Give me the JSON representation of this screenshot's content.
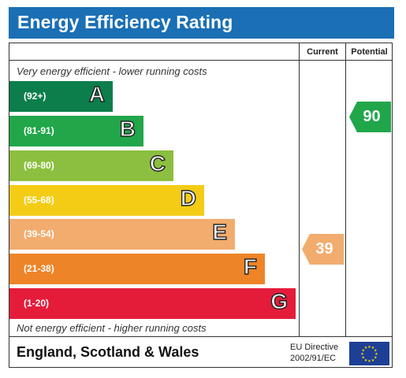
{
  "title": "Energy Efficiency Rating",
  "columns": {
    "current": "Current",
    "potential": "Potential"
  },
  "captions": {
    "top": "Very energy efficient - lower running costs",
    "bottom": "Not energy efficient - higher running costs"
  },
  "bands": [
    {
      "letter": "A",
      "range": "(92+)",
      "color": "#0c7e4b"
    },
    {
      "letter": "B",
      "range": "(81-91)",
      "color": "#21a64a"
    },
    {
      "letter": "C",
      "range": "(69-80)",
      "color": "#8cbf3f"
    },
    {
      "letter": "D",
      "range": "(55-68)",
      "color": "#f4cc16"
    },
    {
      "letter": "E",
      "range": "(39-54)",
      "color": "#f2ac6e"
    },
    {
      "letter": "F",
      "range": "(21-38)",
      "color": "#ee8428"
    },
    {
      "letter": "G",
      "range": "(1-20)",
      "color": "#e41c3a"
    }
  ],
  "current": {
    "value": "39",
    "color": "#f2ac6e"
  },
  "potential": {
    "value": "90",
    "color": "#21a64a"
  },
  "footer": {
    "region": "England, Scotland & Wales",
    "directive_line1": "EU Directive",
    "directive_line2": "2002/91/EC"
  },
  "eu_flag_colors": {
    "background": "#1d3f95",
    "stars": "#f6d200"
  }
}
